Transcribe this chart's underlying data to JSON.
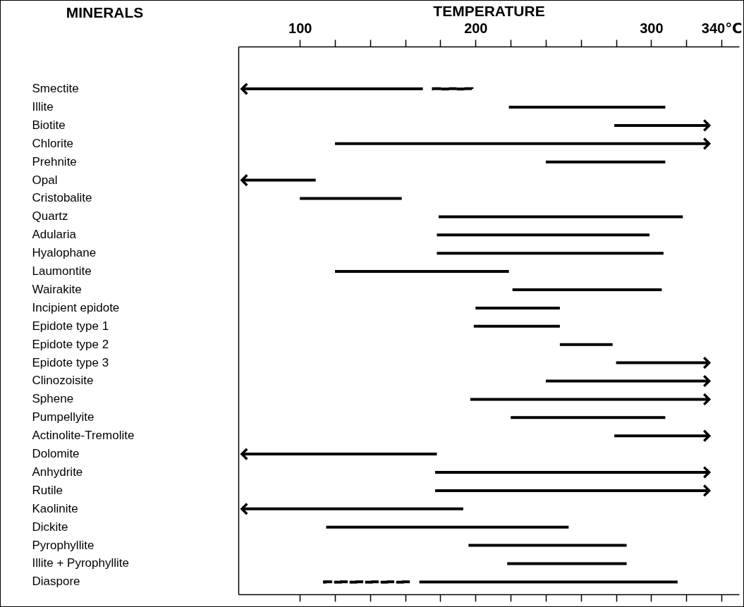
{
  "chart_data": {
    "type": "bar",
    "orientation": "horizontal",
    "xlabel": "TEMPERATURE",
    "ylabel": "MINERALS",
    "categories": [
      "Smectite",
      "Illite",
      "Biotite",
      "Chlorite",
      "Prehnite",
      "Opal",
      "Cristobalite",
      "Quartz",
      "Adularia",
      "Hyalophane",
      "Laumontite",
      "Wairakite",
      "Incipient epidote",
      "Epidote type 1",
      "Epidote type 2",
      "Epidote type 3",
      "Clinozoisite",
      "Sphene",
      "Pumpellyite",
      "Actinolite-Tremolite",
      "Dolomite",
      "Anhydrite",
      "Rutile",
      "Kaolinite",
      "Dickite",
      "Pyrophyllite",
      "Illite + Pyrophyllite",
      "Diaspore"
    ],
    "xlim": [
      65,
      350
    ],
    "xticks": [
      100,
      {
        "value": 120,
        "label": null
      },
      {
        "value": 140,
        "label": null
      },
      {
        "value": 160,
        "label": null
      },
      {
        "value": 180,
        "label": null
      },
      200,
      {
        "value": 220,
        "label": null
      },
      {
        "value": 240,
        "label": null
      },
      {
        "value": 260,
        "label": null
      },
      {
        "value": 280,
        "label": null
      },
      300,
      {
        "value": 320,
        "label": null
      },
      {
        "value": 340,
        "label": "340℃"
      }
    ],
    "series": [
      {
        "color": "#000000",
        "base": [
          null,
          219,
          null,
          null,
          240,
          null,
          100,
          179,
          178,
          178,
          120,
          221,
          200,
          199,
          248,
          null,
          null,
          null,
          220,
          null,
          null,
          null,
          null,
          null,
          115,
          196,
          218,
          168
        ],
        "values": [
          null,
          89,
          null,
          null,
          68,
          null,
          58,
          139,
          121,
          129,
          99,
          85,
          48,
          49,
          30,
          null,
          null,
          null,
          88,
          null,
          null,
          null,
          null,
          null,
          138,
          90,
          68,
          147
        ]
      },
      {
        "color": "#000000",
        "marker": "triangle",
        "base": [
          170,
          null,
          279,
          120,
          null,
          109,
          null,
          null,
          null,
          null,
          null,
          null,
          null,
          null,
          null,
          280,
          240,
          197,
          null,
          279,
          178,
          177,
          177,
          193,
          null,
          null,
          null,
          null
        ],
        "values": [
          -103,
          null,
          54,
          213,
          null,
          -42,
          null,
          null,
          null,
          null,
          null,
          null,
          null,
          null,
          null,
          53,
          93,
          136,
          null,
          54,
          -111,
          156,
          156,
          -126,
          null,
          null,
          null,
          null
        ]
      },
      {
        "color": "#000000",
        "line_style": "dashed",
        "base": [
          176,
          null,
          null,
          null,
          null,
          null,
          null,
          null,
          null,
          null,
          null,
          null,
          null,
          null,
          null,
          null,
          null,
          null,
          null,
          null,
          null,
          null,
          null,
          null,
          null,
          null,
          null,
          114
        ],
        "values": [
          22,
          null,
          null,
          null,
          null,
          null,
          null,
          null,
          null,
          null,
          null,
          null,
          null,
          null,
          null,
          null,
          null,
          null,
          null,
          null,
          null,
          null,
          null,
          null,
          null,
          null,
          null,
          49
        ]
      }
    ]
  }
}
